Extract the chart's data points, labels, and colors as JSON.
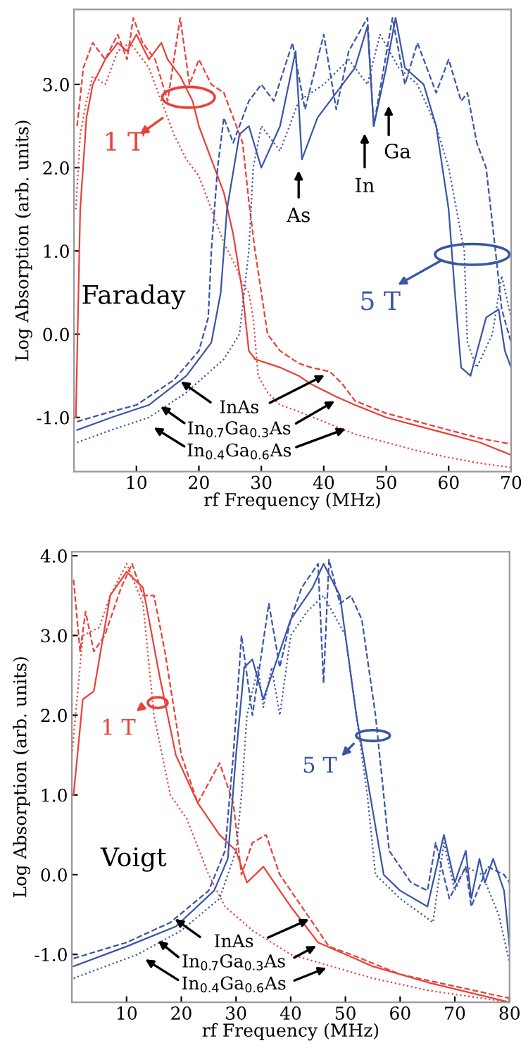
{
  "chart_data": [
    {
      "type": "line",
      "xlabel": "rf Frequency (MHz)",
      "ylabel": "Log Absorption (arb. units)",
      "xlim": [
        0,
        70
      ],
      "ylim": [
        -1.65,
        3.9
      ],
      "xticks": [
        10,
        20,
        30,
        40,
        50,
        60,
        70
      ],
      "yticks": [
        {
          "value": -1,
          "label": "-1.0"
        },
        {
          "value": 0,
          "label": "0.0"
        },
        {
          "value": 1,
          "label": "1.0"
        },
        {
          "value": 2,
          "label": "2.0"
        },
        {
          "value": 3,
          "label": "3.0"
        }
      ],
      "annotations": [
        "1 T",
        "5 T",
        "Faraday",
        "As",
        "In",
        "Ga",
        {
          "text": "InAs",
          "x": 40.7,
          "y": -0.47
        },
        {
          "text": "In$_{0.7}$Ga$_{0.3}$As",
          "x": 42.3,
          "y": -0.78
        },
        {
          "text": "In$_{0.4}$Ga$_{0.6}$As",
          "x": 44.1,
          "y": -1.12
        }
      ],
      "series": [
        {
          "color": "#e8413a",
          "line_style": "dashed",
          "x": [
            0.5,
            1.5,
            3,
            5,
            7,
            8.5,
            9.5,
            11,
            13,
            15,
            17,
            18.5,
            20,
            22,
            24,
            25.5,
            27,
            28,
            29,
            30,
            31,
            33,
            36,
            38,
            41,
            43,
            45,
            50,
            55,
            60,
            65,
            70
          ],
          "values": [
            2.5,
            3.2,
            3.5,
            3.3,
            3.6,
            3.3,
            3.8,
            3.5,
            3.3,
            2.8,
            3.8,
            3.0,
            3.3,
            3.0,
            2.9,
            2.6,
            2.3,
            1.6,
            1.0,
            0.5,
            0.0,
            -0.2,
            -0.35,
            -0.4,
            -0.45,
            -0.6,
            -0.8,
            -0.95,
            -1.05,
            -1.15,
            -1.25,
            -1.32
          ]
        },
        {
          "color": "#e8413a",
          "line_style": "solid",
          "x": [
            0.3,
            1,
            2,
            3,
            5,
            7,
            8.5,
            10,
            12,
            14,
            15,
            17,
            19,
            20,
            22,
            24,
            25.5,
            27,
            28,
            29,
            31,
            33,
            36,
            38,
            42,
            45,
            50,
            55,
            60,
            65,
            70
          ],
          "values": [
            -1.0,
            1.5,
            2.6,
            3.0,
            3.3,
            3.5,
            3.4,
            3.6,
            3.3,
            3.5,
            3.3,
            3.1,
            2.8,
            2.5,
            2.1,
            1.7,
            1.2,
            0.5,
            -0.2,
            -0.3,
            -0.35,
            -0.4,
            -0.5,
            -0.6,
            -0.75,
            -0.85,
            -1.0,
            -1.1,
            -1.2,
            -1.3,
            -1.45
          ]
        },
        {
          "color": "#e8413a",
          "line_style": "dotted",
          "x": [
            0.3,
            1,
            2,
            3,
            5,
            7,
            9,
            10,
            12,
            14,
            16,
            18,
            20,
            22,
            24,
            26,
            27,
            28,
            28.7,
            29.5,
            31,
            33,
            35,
            40,
            45,
            50,
            55,
            60,
            65,
            70
          ],
          "values": [
            1.5,
            2.4,
            2.8,
            3.1,
            3.0,
            3.4,
            3.5,
            3.4,
            3.2,
            2.8,
            2.4,
            2.1,
            1.9,
            1.5,
            1.1,
            0.8,
            0.6,
            0.5,
            0.2,
            -0.5,
            -0.7,
            -0.85,
            -0.9,
            -1.05,
            -1.2,
            -1.3,
            -1.4,
            -1.48,
            -1.55,
            -1.6
          ]
        },
        {
          "color": "#3a55a8",
          "line_style": "dashed",
          "x": [
            0.5,
            5,
            10,
            16,
            20,
            21.5,
            22,
            23,
            24,
            25.5,
            28,
            30,
            32,
            35,
            37,
            40,
            42,
            44,
            47,
            48,
            51,
            53,
            55,
            58,
            60,
            62,
            63,
            64.5,
            66,
            67.5,
            68.5,
            70
          ],
          "values": [
            -1.05,
            -0.95,
            -0.85,
            -0.55,
            -0.2,
            0.2,
            1.0,
            2.0,
            2.6,
            2.3,
            2.8,
            3.0,
            2.8,
            3.5,
            2.7,
            3.6,
            2.7,
            3.4,
            3.8,
            2.5,
            3.8,
            3.0,
            3.5,
            2.9,
            3.3,
            2.8,
            2.9,
            2.3,
            2.0,
            1.0,
            0.3,
            -0.1
          ]
        },
        {
          "color": "#3a55a8",
          "line_style": "solid",
          "x": [
            0.5,
            6,
            12,
            18,
            22,
            23.5,
            24.5,
            26.5,
            28,
            30,
            33,
            35.5,
            36.5,
            39,
            43,
            45,
            47,
            48,
            50,
            51.5,
            53,
            56,
            58,
            60,
            61,
            62,
            63.5,
            66,
            68,
            69,
            70
          ],
          "values": [
            -1.15,
            -1.0,
            -0.85,
            -0.5,
            -0.1,
            0.5,
            1.5,
            2.4,
            2.5,
            2.0,
            2.5,
            3.4,
            2.1,
            2.6,
            3.0,
            3.2,
            3.7,
            2.5,
            3.2,
            3.8,
            3.2,
            3.0,
            2.5,
            1.5,
            0.5,
            -0.4,
            -0.5,
            0.2,
            0.3,
            -0.2,
            -0.4
          ]
        },
        {
          "color": "#3a55a8",
          "line_style": "dotted",
          "x": [
            0.5,
            6,
            12,
            18,
            24,
            26.5,
            28,
            28.7,
            30,
            33,
            36,
            40,
            44,
            47,
            49,
            52,
            55,
            58,
            60,
            62.5,
            63,
            64.5,
            67,
            68.5,
            70
          ],
          "values": [
            -1.3,
            -1.15,
            -1.0,
            -0.7,
            -0.3,
            0.0,
            1.0,
            2.0,
            2.5,
            2.2,
            2.8,
            3.0,
            3.3,
            3.0,
            3.6,
            3.2,
            3.0,
            2.5,
            2.0,
            1.0,
            -0.1,
            -0.4,
            0.0,
            0.7,
            0.2
          ]
        }
      ]
    },
    {
      "type": "line",
      "xlabel": "rf Frequency (MHz)",
      "ylabel": "Log Absorption (arb. units)",
      "xlim": [
        0,
        80
      ],
      "ylim": [
        -1.6,
        4.05
      ],
      "xticks": [
        10,
        20,
        30,
        40,
        50,
        60,
        70,
        80
      ],
      "yticks": [
        {
          "value": -1,
          "label": "-1.0"
        },
        {
          "value": 0,
          "label": "0.0"
        },
        {
          "value": 1,
          "label": "1.0"
        },
        {
          "value": 2,
          "label": "2.0"
        },
        {
          "value": 3,
          "label": "3.0"
        },
        {
          "value": 4,
          "label": "4.0"
        }
      ],
      "annotations": [
        "1 T",
        "5 T",
        "Voigt",
        {
          "text": "InAs",
          "x": 44,
          "y": -0.54
        },
        {
          "text": "In$_{0.7}$Ga$_{0.3}$As",
          "x": 45.3,
          "y": -0.87
        },
        {
          "text": "In$_{0.4}$Ga$_{0.6}$As",
          "x": 47.2,
          "y": -1.15
        }
      ],
      "series": [
        {
          "color": "#e8413a",
          "line_style": "dashed",
          "x": [
            0.3,
            1.5,
            2.5,
            4,
            6,
            9,
            11,
            13,
            15,
            17,
            20,
            23,
            27,
            29.5,
            31,
            33,
            35.5,
            38,
            43,
            47,
            51,
            60,
            70,
            80
          ],
          "values": [
            3.7,
            2.8,
            3.3,
            2.8,
            3.0,
            3.6,
            3.9,
            3.5,
            3.5,
            2.8,
            1.5,
            0.9,
            1.4,
            0.9,
            0.0,
            0.4,
            0.5,
            0.0,
            -0.5,
            -0.9,
            -1.0,
            -1.25,
            -1.4,
            -1.55
          ]
        },
        {
          "color": "#e8413a",
          "line_style": "solid",
          "x": [
            0.3,
            2,
            4,
            7,
            10,
            13,
            16,
            19,
            23,
            27,
            30,
            32,
            35,
            40,
            45,
            55,
            65,
            80
          ],
          "values": [
            1.0,
            2.2,
            2.3,
            3.5,
            3.8,
            3.6,
            2.5,
            1.5,
            0.9,
            0.5,
            0.3,
            -0.1,
            0.1,
            -0.4,
            -0.85,
            -1.15,
            -1.35,
            -1.6
          ]
        },
        {
          "color": "#e8413a",
          "line_style": "dotted",
          "x": [
            0,
            2,
            5,
            7,
            10,
            13,
            15,
            18,
            21,
            25,
            28,
            33,
            40,
            55,
            65,
            80
          ],
          "values": [
            1.5,
            3.0,
            3.1,
            3.5,
            3.9,
            3.4,
            2.0,
            1.0,
            0.7,
            0.0,
            -0.4,
            -0.7,
            -1.0,
            -1.3,
            -1.45,
            -1.6
          ]
        },
        {
          "color": "#3a55a8",
          "line_style": "dashed",
          "x": [
            0.3,
            10,
            18,
            25,
            28,
            29.5,
            31,
            33,
            36,
            38,
            40,
            42,
            45,
            46,
            47,
            49,
            51,
            53,
            55.5,
            57,
            58,
            62,
            65,
            66.5,
            69,
            72,
            73,
            76,
            79,
            80
          ],
          "values": [
            -1.05,
            -0.85,
            -0.6,
            -0.2,
            0.3,
            1.5,
            3.0,
            2.0,
            3.4,
            2.6,
            3.2,
            3.6,
            3.9,
            2.4,
            3.95,
            3.4,
            3.5,
            3.2,
            2.0,
            1.0,
            0.3,
            -0.1,
            -0.2,
            0.4,
            -0.3,
            0.1,
            -0.4,
            0.1,
            0.0,
            -0.1
          ]
        },
        {
          "color": "#3a55a8",
          "line_style": "solid",
          "x": [
            0.3,
            10,
            19,
            26,
            28.5,
            30,
            31.5,
            33,
            35,
            37,
            40,
            44,
            46,
            49,
            52,
            54.5,
            57,
            60,
            65,
            68,
            70,
            72,
            73,
            74.5,
            75.5,
            77,
            79,
            80
          ],
          "values": [
            -1.15,
            -0.9,
            -0.65,
            -0.2,
            0.2,
            1.5,
            2.6,
            2.7,
            2.2,
            2.6,
            3.2,
            3.6,
            3.9,
            3.5,
            2.0,
            1.0,
            0.0,
            -0.2,
            -0.4,
            0.5,
            -0.1,
            0.3,
            -0.3,
            0.2,
            -0.1,
            0.2,
            -0.2,
            -0.9
          ]
        },
        {
          "color": "#3a55a8",
          "line_style": "dotted",
          "x": [
            0.3,
            12,
            20,
            27,
            30,
            31,
            32,
            34,
            35,
            36.5,
            38,
            40,
            43,
            46,
            50,
            52,
            54,
            55.5,
            60,
            66,
            68,
            70,
            72,
            75,
            78,
            80
          ],
          "values": [
            -1.3,
            -1.0,
            -0.7,
            -0.3,
            0.3,
            1.0,
            2.0,
            2.6,
            2.1,
            2.6,
            2.0,
            3.0,
            3.3,
            3.5,
            3.0,
            2.0,
            1.0,
            0.0,
            -0.3,
            -0.6,
            0.4,
            -0.2,
            0.1,
            0.0,
            -0.5,
            -1.1
          ]
        }
      ]
    }
  ]
}
